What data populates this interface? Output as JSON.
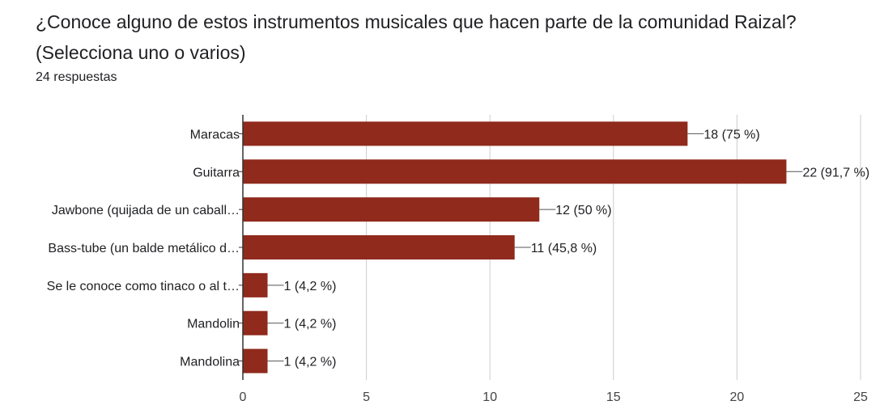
{
  "question": {
    "title": "¿Conoce alguno de estos instrumentos musicales que hacen parte de la comunidad Raizal? (Selecciona uno o varios)",
    "responses": "24 respuestas"
  },
  "colors": {
    "bar": "#8f2a1c",
    "grid": "#cccccc",
    "axis": "#333333",
    "text": "#202124"
  },
  "chart_data": {
    "type": "bar",
    "orientation": "horizontal",
    "categories": [
      "Maracas",
      "Guitarra",
      "Jawbone (quijada de un caball…",
      "Bass-tube (un balde metálico d…",
      "Se le conoce como tinaco o al t…",
      "Mandolin",
      "Mandolina"
    ],
    "values": [
      18,
      22,
      12,
      11,
      1,
      1,
      1
    ],
    "labels": [
      "18 (75 %)",
      "22 (91,7 %)",
      "12 (50 %)",
      "11 (45,8 %)",
      "1 (4,2 %)",
      "1 (4,2 %)",
      "1 (4,2 %)"
    ],
    "xlim": [
      0,
      25
    ],
    "xticks": [
      "0",
      "5",
      "10",
      "15",
      "20",
      "25"
    ],
    "grid": true,
    "legend": "none"
  }
}
